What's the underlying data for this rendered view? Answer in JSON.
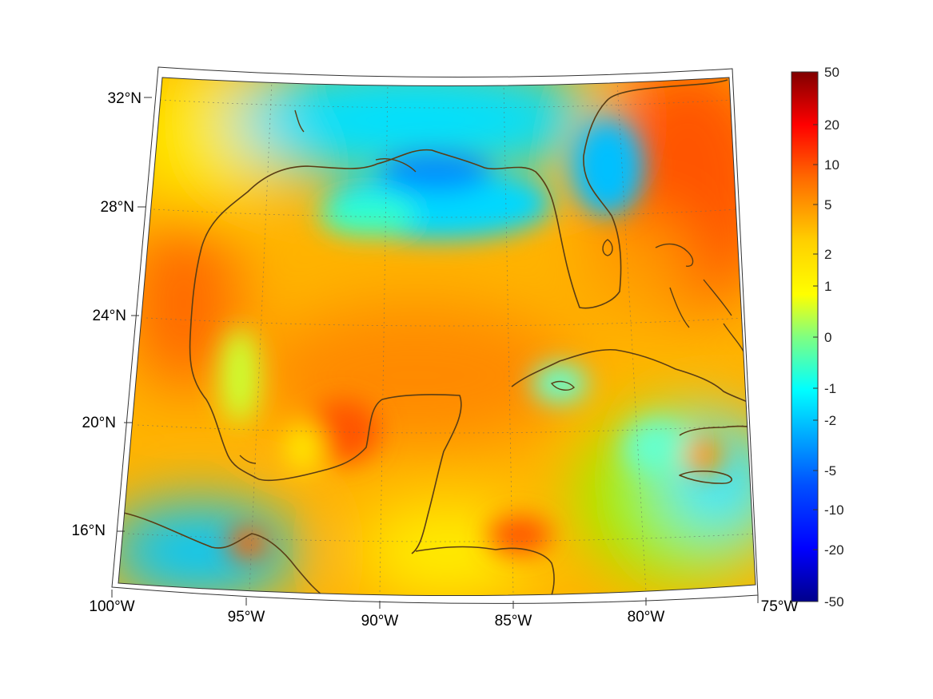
{
  "map": {
    "lon_labels": [
      "100°W",
      "95°W",
      "90°W",
      "85°W",
      "80°W",
      "75°W"
    ],
    "lat_labels": [
      "32°N",
      "28°N",
      "24°N",
      "20°N",
      "16°N"
    ],
    "extent": {
      "lon_min": -100,
      "lon_max": -75,
      "lat_min": 14,
      "lat_max": 33
    },
    "coastline_color": "#5a3d14",
    "projection": "conic"
  },
  "colorbar": {
    "tick_labels": [
      "50",
      "20",
      "10",
      "5",
      "2",
      "1",
      "0",
      "-1",
      "-2",
      "-5",
      "-10",
      "-20",
      "-50"
    ],
    "colormap": "jet",
    "colors": {
      "max": "#800000",
      "red": "#ff0000",
      "orange": "#ff8800",
      "yellow": "#ffff00",
      "green": "#66ff99",
      "cyan": "#00e5ff",
      "blue": "#0000ff",
      "min": "#00008b"
    }
  }
}
